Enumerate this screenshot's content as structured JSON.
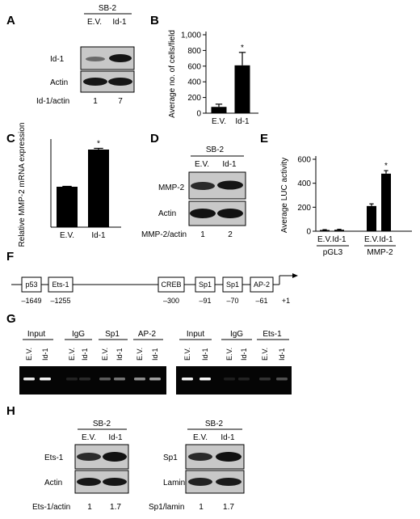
{
  "panels": {
    "A": {
      "letter": "A",
      "group": "SB-2",
      "lanes": [
        "E.V.",
        "Id-1"
      ],
      "rows": [
        "Id-1",
        "Actin"
      ],
      "ratio_label": "Id-1/actin",
      "ratio_values": [
        "1",
        "7"
      ]
    },
    "B": {
      "letter": "B"
    },
    "C": {
      "letter": "C"
    },
    "D": {
      "letter": "D",
      "group": "SB-2",
      "lanes": [
        "E.V.",
        "Id-1"
      ],
      "rows": [
        "MMP-2",
        "Actin"
      ],
      "ratio_label": "MMP-2/actin",
      "ratio_values": [
        "1",
        "2"
      ]
    },
    "E": {
      "letter": "E"
    },
    "F": {
      "letter": "F",
      "elements": [
        {
          "name": "p53",
          "pos": "–1649"
        },
        {
          "name": "Ets-1",
          "pos": "–1255"
        },
        {
          "name": "CREB",
          "pos": "–300"
        },
        {
          "name": "Sp1",
          "pos": "–91"
        },
        {
          "name": "Sp1",
          "pos": "–70"
        },
        {
          "name": "AP-2",
          "pos": "–61"
        }
      ],
      "tss": "+1"
    },
    "G": {
      "letter": "G",
      "left_groups": [
        "Input",
        "IgG",
        "Sp1",
        "AP-2"
      ],
      "right_groups": [
        "Input",
        "IgG",
        "Ets-1"
      ],
      "lanes": [
        "E.V.",
        "Id-1"
      ]
    },
    "H": {
      "letter": "H",
      "left": {
        "group": "SB-2",
        "lanes": [
          "E.V.",
          "Id-1"
        ],
        "rows": [
          "Ets-1",
          "Actin"
        ],
        "ratio_label": "Ets-1/actin",
        "ratio_values": [
          "1",
          "1.7"
        ]
      },
      "right": {
        "group": "SB-2",
        "lanes": [
          "E.V.",
          "Id-1"
        ],
        "rows": [
          "Sp1",
          "Lamin"
        ],
        "ratio_label": "Sp1/lamin",
        "ratio_values": [
          "1",
          "1.7"
        ]
      }
    }
  },
  "chart_data": [
    {
      "type": "bar",
      "panel": "B",
      "categories": [
        "E.V.",
        "Id-1"
      ],
      "values": [
        80,
        610
      ],
      "errors": [
        35,
        165
      ],
      "significance": [
        "",
        "*"
      ],
      "ylabel": "Average no. of cells/field",
      "ylim": [
        0,
        1000
      ],
      "yticks": [
        "0",
        "200",
        "400",
        "600",
        "800",
        "1,000"
      ]
    },
    {
      "type": "bar",
      "panel": "C",
      "categories": [
        "E.V.",
        "Id-1"
      ],
      "values": [
        1.0,
        1.92
      ],
      "errors": [
        0.01,
        0.03
      ],
      "significance": [
        "",
        "*"
      ],
      "ylabel": "Relative MMP-2 mRNA expression",
      "ylim": [
        0,
        2.1
      ]
    },
    {
      "type": "bar",
      "panel": "E",
      "groups": [
        "pGL3",
        "MMP-2"
      ],
      "categories": [
        "E.V.",
        "Id-1",
        "E.V.",
        "Id-1"
      ],
      "values": [
        10,
        12,
        210,
        480
      ],
      "errors": [
        3,
        4,
        18,
        25
      ],
      "significance": [
        "",
        "",
        "",
        "*"
      ],
      "ylabel": "Average LUC activity",
      "ylim": [
        0,
        600
      ],
      "yticks": [
        "0",
        "200",
        "400",
        "600"
      ]
    }
  ]
}
